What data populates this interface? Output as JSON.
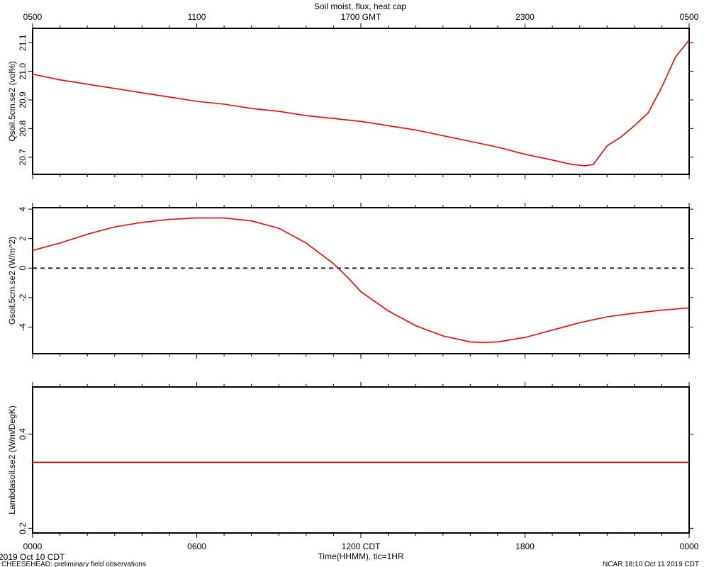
{
  "chart_data": {
    "type": "line",
    "title": "Soil moist, flux, heat cap",
    "top_axis": {
      "tick_labels": [
        "0500",
        "1100",
        "1700 GMT",
        "2300",
        "0500"
      ],
      "tick_hours": [
        0,
        6,
        12,
        18,
        24
      ]
    },
    "bottom_axis": {
      "tick_labels": [
        "0000",
        "0600",
        "1200 CDT",
        "1800",
        "0000"
      ],
      "tick_hours": [
        0,
        6,
        12,
        18,
        24
      ],
      "xlabel": "Time(HHMM), tic=1HR",
      "xlim": [
        0,
        24
      ]
    },
    "start_label": "2019 Oct 10 CDT",
    "footer_left": "CHEESEHEAD: preliminary field observations",
    "footer_right": "NCAR 18:10 Oct 11 2019 CDT",
    "panels": [
      {
        "ylabel": "Qsoil.5cm.se2 (vol%)",
        "ylim": [
          20.64,
          21.15
        ],
        "yticks": [
          20.7,
          20.8,
          20.9,
          21.0,
          21.1
        ],
        "ytick_labels": [
          "20.7",
          "20.8",
          "20.9",
          "21.0",
          "21.1"
        ],
        "zero_line": false,
        "series": {
          "color": "#ff0000",
          "x": [
            0,
            1,
            2,
            3,
            4,
            5,
            6,
            7,
            8,
            9,
            10,
            11,
            12,
            13,
            14,
            15,
            16,
            17,
            18,
            19,
            19.7,
            20.2,
            20.5,
            21,
            21.5,
            22,
            22.5,
            23,
            23.5,
            24
          ],
          "values": [
            20.99,
            20.97,
            20.955,
            20.94,
            20.925,
            20.91,
            20.895,
            20.885,
            20.87,
            20.86,
            20.845,
            20.835,
            20.825,
            20.81,
            20.795,
            20.775,
            20.755,
            20.735,
            20.71,
            20.69,
            20.675,
            20.67,
            20.675,
            20.74,
            20.77,
            20.81,
            20.855,
            20.945,
            21.05,
            21.11
          ]
        }
      },
      {
        "ylabel": "Gsoil.5cm.se2 (W/m^2)",
        "ylim": [
          -5.8,
          4.1
        ],
        "yticks": [
          -4,
          -2,
          0,
          2,
          4
        ],
        "ytick_labels": [
          "-4",
          "-2",
          "0",
          "2",
          "4"
        ],
        "zero_line": true,
        "series": {
          "color": "#ff0000",
          "x": [
            0,
            1,
            2,
            3,
            4,
            5,
            6,
            7,
            8,
            9,
            10,
            11,
            11.5,
            12,
            13,
            14,
            15,
            16,
            16.5,
            17,
            18,
            19,
            20,
            21,
            22,
            23,
            24
          ],
          "values": [
            1.2,
            1.7,
            2.3,
            2.8,
            3.1,
            3.3,
            3.4,
            3.4,
            3.2,
            2.7,
            1.7,
            0.3,
            -0.6,
            -1.6,
            -2.9,
            -3.9,
            -4.6,
            -5.0,
            -5.05,
            -5.0,
            -4.7,
            -4.2,
            -3.7,
            -3.3,
            -3.05,
            -2.85,
            -2.7
          ]
        }
      },
      {
        "ylabel": "Lambdasoil.se2 (W/m/DegK)",
        "ylim": [
          0.19,
          0.5
        ],
        "yticks": [
          0.2,
          0.4
        ],
        "ytick_labels": [
          "0.2",
          "0.4"
        ],
        "zero_line": false,
        "series": {
          "color": "#ff0000",
          "x": [
            0,
            24
          ],
          "values": [
            0.34,
            0.34
          ]
        }
      }
    ]
  }
}
